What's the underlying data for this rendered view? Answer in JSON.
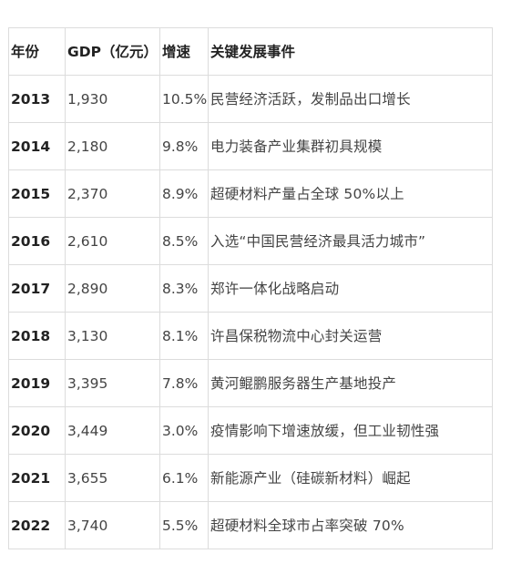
{
  "table": {
    "headers": [
      "年份",
      "GDP（亿元）",
      "增速",
      "关键发展事件"
    ],
    "rows": [
      {
        "year": "2013",
        "gdp": "1,930",
        "rate": "10.5%",
        "event": "民营经济活跃，发制品出口增长"
      },
      {
        "year": "2014",
        "gdp": "2,180",
        "rate": "9.8%",
        "event": "电力装备产业集群初具规模"
      },
      {
        "year": "2015",
        "gdp": "2,370",
        "rate": "8.9%",
        "event": "超硬材料产量占全球 50%以上"
      },
      {
        "year": "2016",
        "gdp": "2,610",
        "rate": "8.5%",
        "event": "入选“中国民营经济最具活力城市”"
      },
      {
        "year": "2017",
        "gdp": "2,890",
        "rate": "8.3%",
        "event": "郑许一体化战略启动"
      },
      {
        "year": "2018",
        "gdp": "3,130",
        "rate": "8.1%",
        "event": "许昌保税物流中心封关运营"
      },
      {
        "year": "2019",
        "gdp": "3,395",
        "rate": "7.8%",
        "event": "黄河鲲鹏服务器生产基地投产"
      },
      {
        "year": "2020",
        "gdp": "3,449",
        "rate": "3.0%",
        "event": "疫情影响下增速放缓，但工业韧性强"
      },
      {
        "year": "2021",
        "gdp": "3,655",
        "rate": "6.1%",
        "event": "新能源产业（硅碳新材料）崛起"
      },
      {
        "year": "2022",
        "gdp": "3,740",
        "rate": "5.5%",
        "event": "超硬材料全球市占率突破 70%"
      }
    ]
  }
}
